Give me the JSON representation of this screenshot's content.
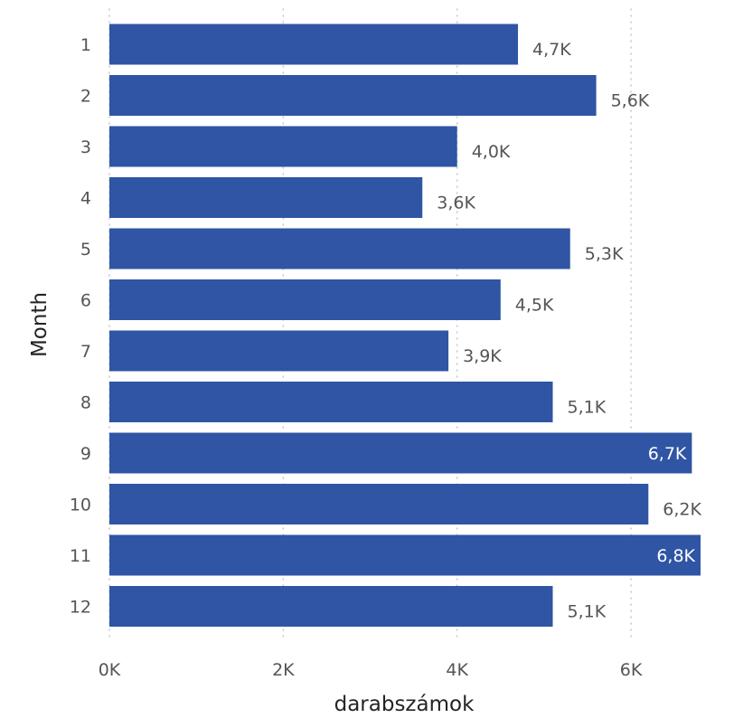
{
  "chart_data": {
    "type": "bar",
    "orientation": "horizontal",
    "categories": [
      "1",
      "2",
      "3",
      "4",
      "5",
      "6",
      "7",
      "8",
      "9",
      "10",
      "11",
      "12"
    ],
    "values": [
      4700,
      5600,
      4000,
      3600,
      5300,
      4500,
      3900,
      5100,
      6700,
      6200,
      6800,
      5100
    ],
    "data_labels": [
      "4,7K",
      "5,6K",
      "4,0K",
      "3,6K",
      "5,3K",
      "4,5K",
      "3,9K",
      "5,1K",
      "6,7K",
      "6,2K",
      "6,8K",
      "5,1K"
    ],
    "xlabel": "darabszámok",
    "ylabel": "Month",
    "x_ticks": [
      0,
      2000,
      4000,
      6000
    ],
    "x_tick_labels": [
      "0K",
      "2K",
      "4K",
      "6K"
    ],
    "xlim": [
      0,
      6800
    ],
    "grid": "vertical dotted",
    "bar_color": "#2f55a4",
    "label_color_outside": "#555555",
    "label_color_inside": "#ffffff"
  }
}
